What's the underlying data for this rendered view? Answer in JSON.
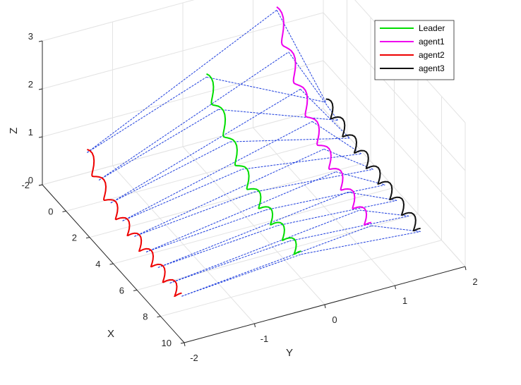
{
  "chart_data": {
    "type": "line",
    "view": "3d",
    "axes": {
      "x": {
        "label": "X",
        "ticks": [
          "-2",
          "0",
          "2",
          "4",
          "6",
          "8",
          "10"
        ],
        "range": [
          -2,
          10
        ]
      },
      "y": {
        "label": "Y",
        "ticks": [
          "-2",
          "-1",
          "0",
          "1",
          "2"
        ],
        "range": [
          -2,
          2
        ]
      },
      "z": {
        "label": "Z",
        "ticks": [
          "0",
          "1",
          "2",
          "3"
        ],
        "range": [
          0,
          3
        ]
      }
    },
    "grid": true,
    "legend": {
      "placement": "top-right"
    },
    "series": [
      {
        "name": "Leader",
        "color": "#00dd00",
        "points": [
          [
            0,
            0,
            2
          ],
          [
            1,
            0,
            1.6
          ],
          [
            2,
            0,
            1.2
          ],
          [
            3,
            0,
            0.9
          ],
          [
            4,
            0,
            0.7
          ],
          [
            5,
            0,
            0.6
          ],
          [
            6,
            0,
            0.55
          ],
          [
            7,
            0,
            0.5
          ],
          [
            8,
            0,
            0.5
          ]
        ]
      },
      {
        "name": "agent1",
        "color": "#ee00ee",
        "points": [
          [
            0,
            1,
            3
          ],
          [
            1,
            1,
            2.4
          ],
          [
            2,
            1,
            1.9
          ],
          [
            3,
            1,
            1.5
          ],
          [
            4,
            1,
            1.2
          ],
          [
            5,
            1,
            1
          ],
          [
            6,
            1,
            0.85
          ],
          [
            7,
            1,
            0.75
          ],
          [
            8,
            1,
            0.7
          ]
        ]
      },
      {
        "name": "agent2",
        "color": "#ee0000",
        "points": [
          [
            0,
            -1.7,
            1.1
          ],
          [
            1,
            -1.7,
            0.8
          ],
          [
            2,
            -1.7,
            0.6
          ],
          [
            3,
            -1.7,
            0.5
          ],
          [
            4,
            -1.7,
            0.45
          ],
          [
            5,
            -1.7,
            0.4
          ],
          [
            6,
            -1.7,
            0.35
          ],
          [
            7,
            -1.7,
            0.3
          ],
          [
            8,
            -1.7,
            0.3
          ]
        ]
      },
      {
        "name": "agent3",
        "color": "#111111",
        "points": [
          [
            0,
            1.7,
            0.8
          ],
          [
            1,
            1.7,
            0.7
          ],
          [
            2,
            1.7,
            0.6
          ],
          [
            3,
            1.7,
            0.55
          ],
          [
            4,
            1.7,
            0.5
          ],
          [
            5,
            1.7,
            0.45
          ],
          [
            6,
            1.7,
            0.4
          ],
          [
            7,
            1.7,
            0.35
          ],
          [
            8,
            1.7,
            0.3
          ]
        ]
      }
    ],
    "connections": {
      "color": "#1f3fdd",
      "style": "dashed",
      "pairs": [
        [
          "agent2",
          "agent1"
        ],
        [
          "agent2",
          "Leader"
        ],
        [
          "Leader",
          "agent3"
        ],
        [
          "agent1",
          "agent3"
        ]
      ]
    }
  }
}
